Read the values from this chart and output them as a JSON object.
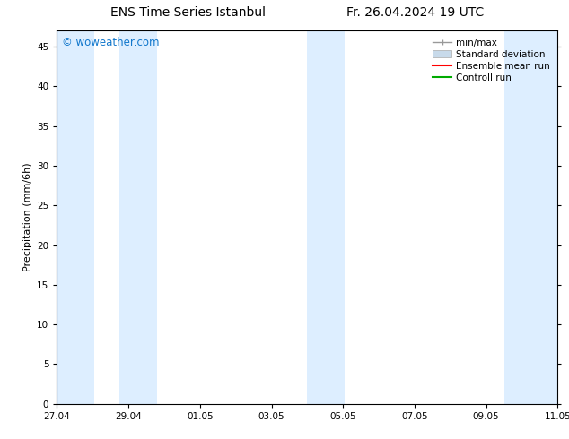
{
  "title_left": "ENS Time Series Istanbul",
  "title_right": "Fr. 26.04.2024 19 UTC",
  "ylabel": "Precipitation (mm/6h)",
  "watermark": "© woweather.com",
  "watermark_color": "#1177cc",
  "ylim": [
    0,
    47
  ],
  "yticks": [
    0,
    5,
    10,
    15,
    20,
    25,
    30,
    35,
    40,
    45
  ],
  "xtick_labels": [
    "27.04",
    "29.04",
    "01.05",
    "03.05",
    "05.05",
    "07.05",
    "09.05",
    "11.05"
  ],
  "xstart": 0,
  "xend": 16,
  "background_color": "#ffffff",
  "plot_bg_color": "#ffffff",
  "shaded_bands": [
    {
      "xmin": 0.0,
      "xmax": 1.2
    },
    {
      "xmin": 2.0,
      "xmax": 3.2
    },
    {
      "xmin": 8.0,
      "xmax": 9.2
    },
    {
      "xmin": 14.3,
      "xmax": 16.0
    }
  ],
  "shaded_color": "#ddeeff",
  "legend_items": [
    {
      "label": "min/max",
      "color": "#999999",
      "style": "errorbar"
    },
    {
      "label": "Standard deviation",
      "color": "#c8daea",
      "style": "box"
    },
    {
      "label": "Ensemble mean run",
      "color": "#ff0000",
      "style": "line"
    },
    {
      "label": "Controll run",
      "color": "#00aa00",
      "style": "line"
    }
  ],
  "title_fontsize": 10,
  "tick_fontsize": 7.5,
  "ylabel_fontsize": 8,
  "legend_fontsize": 7.5
}
